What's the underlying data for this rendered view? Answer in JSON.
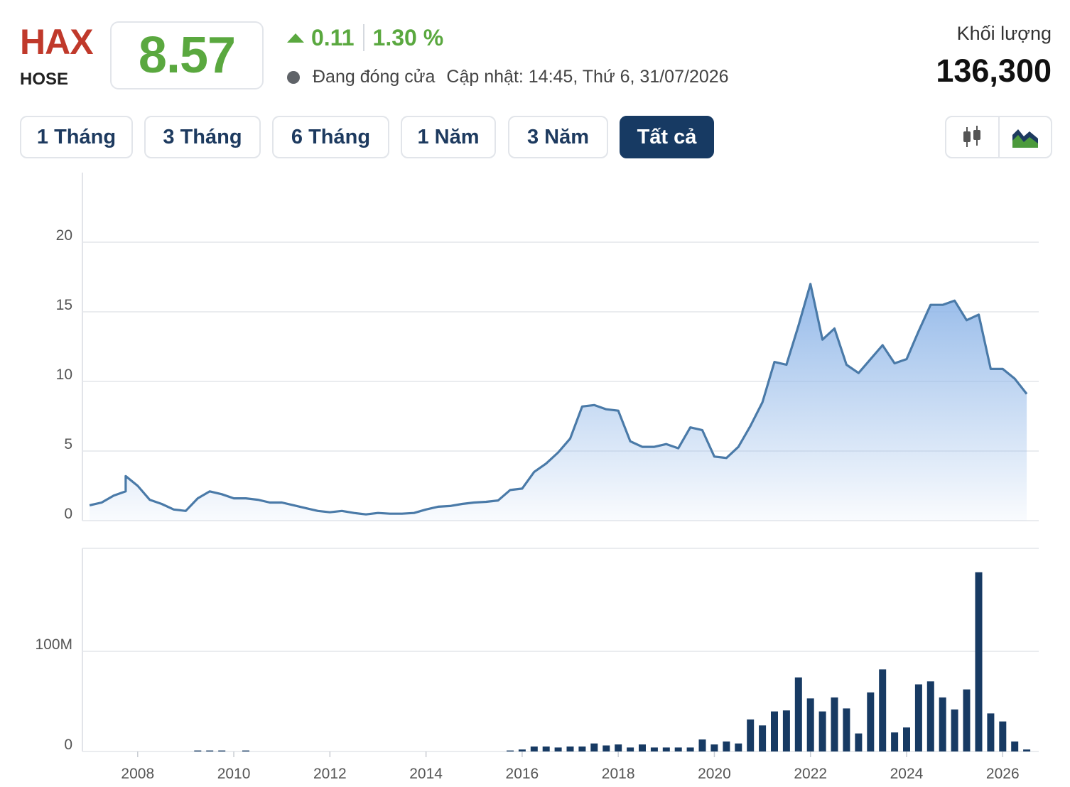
{
  "header": {
    "ticker": "HAX",
    "exchange": "HOSE",
    "price": "8.57",
    "change": "0.11",
    "change_pct": "1.30 %",
    "status": "Đang đóng cửa",
    "updated": "Cập nhật: 14:45, Thứ 6, 31/07/2026",
    "volume_label": "Khối lượng",
    "volume_value": "136,300",
    "up_color": "#5aa83f",
    "ticker_color": "#c0392b"
  },
  "tabs": [
    {
      "label": "1 Tháng",
      "active": false
    },
    {
      "label": "3 Tháng",
      "active": false
    },
    {
      "label": "6 Tháng",
      "active": false
    },
    {
      "label": "1 Năm",
      "active": false
    },
    {
      "label": "3 Năm",
      "active": false
    },
    {
      "label": "Tất cả",
      "active": true
    }
  ],
  "chart_type_buttons": [
    {
      "icon": "candlestick-icon"
    },
    {
      "icon": "area-chart-icon"
    }
  ],
  "chart_data": [
    {
      "type": "area",
      "ylim": [
        0,
        25
      ],
      "yticks": [
        0,
        5,
        10,
        15,
        20
      ],
      "ytick_labels": [
        "0",
        "5",
        "10",
        "15",
        "20"
      ],
      "xlim": [
        2006.85,
        2026.75
      ],
      "grid": true,
      "line_color": "#4a7aa8",
      "fill_color": "#8fb6e8",
      "x": [
        2007.0,
        2007.25,
        2007.5,
        2007.75,
        2007.75,
        2008.0,
        2008.25,
        2008.5,
        2008.75,
        2009.0,
        2009.25,
        2009.5,
        2009.75,
        2010.0,
        2010.25,
        2010.5,
        2010.75,
        2011.0,
        2011.25,
        2011.5,
        2011.75,
        2012.0,
        2012.25,
        2012.5,
        2012.75,
        2013.0,
        2013.25,
        2013.5,
        2013.75,
        2014.0,
        2014.25,
        2014.5,
        2014.75,
        2015.0,
        2015.25,
        2015.5,
        2015.75,
        2016.0,
        2016.25,
        2016.5,
        2016.75,
        2017.0,
        2017.25,
        2017.5,
        2017.75,
        2018.0,
        2018.25,
        2018.5,
        2018.75,
        2019.0,
        2019.25,
        2019.5,
        2019.75,
        2020.0,
        2020.25,
        2020.5,
        2020.75,
        2021.0,
        2021.25,
        2021.5,
        2021.75,
        2022.0,
        2022.25,
        2022.5,
        2022.75,
        2023.0,
        2023.25,
        2023.5,
        2023.75,
        2024.0,
        2024.25,
        2024.5,
        2024.75,
        2025.0,
        2025.25,
        2025.5,
        2025.75,
        2026.0,
        2026.25,
        2026.5
      ],
      "y": [
        1.1,
        1.3,
        1.8,
        2.1,
        3.2,
        2.5,
        1.5,
        1.2,
        0.8,
        0.7,
        1.6,
        2.1,
        1.9,
        1.6,
        1.6,
        1.5,
        1.3,
        1.3,
        1.1,
        0.9,
        0.7,
        0.6,
        0.7,
        0.55,
        0.45,
        0.55,
        0.5,
        0.5,
        0.55,
        0.8,
        1.0,
        1.05,
        1.2,
        1.3,
        1.35,
        1.45,
        2.2,
        2.3,
        3.5,
        4.1,
        4.9,
        5.9,
        8.2,
        8.3,
        8.0,
        7.9,
        5.7,
        5.3,
        5.3,
        5.5,
        5.2,
        6.7,
        6.5,
        4.6,
        4.5,
        5.3,
        6.8,
        8.5,
        11.4,
        11.2,
        14.0,
        17.0,
        13.0,
        13.8,
        11.2,
        10.6,
        11.6,
        12.6,
        11.3,
        11.6,
        13.6,
        15.5,
        15.5,
        15.8,
        14.4,
        14.8,
        10.9,
        10.9,
        10.2,
        9.1
      ]
    },
    {
      "type": "bar",
      "ylim": [
        0,
        200
      ],
      "yticks": [
        0,
        100
      ],
      "ytick_labels": [
        "0",
        "100M"
      ],
      "xlim": [
        2006.85,
        2026.75
      ],
      "xticks": [
        2008,
        2010,
        2012,
        2014,
        2016,
        2018,
        2020,
        2022,
        2024,
        2026
      ],
      "xtick_labels": [
        "2008",
        "2010",
        "2012",
        "2014",
        "2016",
        "2018",
        "2020",
        "2022",
        "2024",
        "2026"
      ],
      "grid": true,
      "bar_color": "#173a63",
      "x": [
        2009.25,
        2009.5,
        2009.75,
        2010.25,
        2015.75,
        2016.0,
        2016.25,
        2016.5,
        2016.75,
        2017.0,
        2017.25,
        2017.5,
        2017.75,
        2018.0,
        2018.25,
        2018.5,
        2018.75,
        2019.0,
        2019.25,
        2019.5,
        2019.75,
        2020.0,
        2020.25,
        2020.5,
        2020.75,
        2021.0,
        2021.25,
        2021.5,
        2021.75,
        2022.0,
        2022.25,
        2022.5,
        2022.75,
        2023.0,
        2023.25,
        2023.5,
        2023.75,
        2024.0,
        2024.25,
        2024.5,
        2024.75,
        2025.0,
        2025.25,
        2025.5,
        2025.75,
        2026.0,
        2026.25,
        2026.5
      ],
      "values": [
        1,
        1,
        1,
        1,
        1,
        2,
        5,
        5,
        4,
        5,
        5,
        8,
        6,
        7,
        4,
        7,
        4,
        4,
        4,
        4,
        12,
        7,
        10,
        8,
        32,
        26,
        40,
        41,
        74,
        53,
        40,
        54,
        43,
        18,
        59,
        82,
        19,
        24,
        67,
        70,
        54,
        42,
        62,
        179,
        38,
        30,
        10,
        2
      ]
    }
  ]
}
